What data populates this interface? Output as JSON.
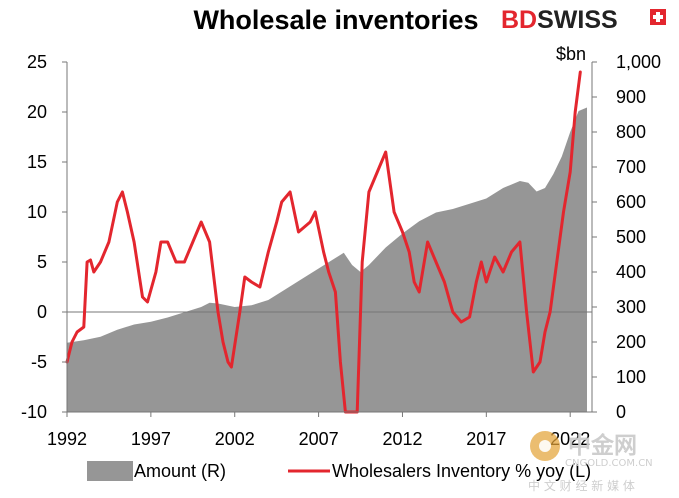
{
  "brand": {
    "part1": "BD",
    "part2": "SWISS",
    "color": "#e3262e"
  },
  "watermark": {
    "name": "中金网",
    "url": "CNGOLD.COM.CN",
    "tagline": "中 文 财 经 新 媒 体"
  },
  "chart_data": {
    "type": "area+line",
    "title": "Wholesale inventories",
    "left_axis": {
      "ylim": [
        -10,
        25
      ],
      "ticks": [
        "-10",
        "-5",
        "0",
        "5",
        "10",
        "15",
        "20",
        "25"
      ]
    },
    "right_axis": {
      "unit_label": "$bn",
      "ylim": [
        0,
        1000
      ],
      "ticks": [
        "0",
        "100",
        "200",
        "300",
        "400",
        "500",
        "600",
        "700",
        "800",
        "900",
        "1,000"
      ]
    },
    "x_axis": {
      "range": [
        1992,
        2023.3
      ],
      "ticks": [
        "1992",
        "1997",
        "2002",
        "2007",
        "2012",
        "2017",
        "2022"
      ]
    },
    "grid": false,
    "legend_position": "bottom",
    "series": [
      {
        "name": "Amount (R)",
        "type": "area",
        "axis": "right",
        "color": "#969696",
        "x": [
          1992,
          1993,
          1994,
          1995,
          1996,
          1997,
          1998,
          1999,
          2000,
          2000.5,
          2001,
          2002,
          2003,
          2004,
          2005,
          2006,
          2007,
          2008,
          2008.5,
          2009,
          2009.5,
          2010,
          2011,
          2012,
          2013,
          2014,
          2015,
          2016,
          2017,
          2018,
          2019,
          2019.5,
          2020,
          2020.5,
          2021,
          2021.5,
          2022,
          2022.5,
          2023
        ],
        "values": [
          198,
          205,
          215,
          235,
          250,
          258,
          270,
          285,
          300,
          312,
          310,
          300,
          305,
          320,
          350,
          380,
          410,
          440,
          455,
          420,
          400,
          420,
          470,
          510,
          545,
          570,
          580,
          595,
          610,
          640,
          660,
          655,
          630,
          640,
          680,
          730,
          800,
          860,
          870
        ]
      },
      {
        "name": "Wholesalers Inventory % yoy (L)",
        "type": "line",
        "axis": "left",
        "color": "#e3262e",
        "x": [
          1992,
          1992.3,
          1992.6,
          1993,
          1993.2,
          1993.4,
          1993.6,
          1994,
          1994.5,
          1995,
          1995.3,
          1995.6,
          1996,
          1996.5,
          1996.8,
          1997.3,
          1997.6,
          1998,
          1998.5,
          1999,
          1999.5,
          2000,
          2000.5,
          2001,
          2001.3,
          2001.6,
          2001.8,
          2002.3,
          2002.6,
          2003,
          2003.5,
          2004,
          2004.5,
          2004.8,
          2005.3,
          2005.8,
          2006.5,
          2006.8,
          2007.3,
          2007.6,
          2008,
          2008.3,
          2008.6,
          2009,
          2009.3,
          2009.6,
          2010,
          2010.5,
          2011,
          2011.5,
          2012,
          2012.4,
          2012.7,
          2013,
          2013.5,
          2014,
          2014.5,
          2015,
          2015.5,
          2016,
          2016.4,
          2016.7,
          2017,
          2017.5,
          2018,
          2018.5,
          2019,
          2019.4,
          2019.8,
          2020.2,
          2020.5,
          2020.8,
          2021.2,
          2021.6,
          2022,
          2022.3,
          2022.6
        ],
        "values": [
          -5,
          -3,
          -2,
          -1.5,
          5,
          5.2,
          4,
          5,
          7,
          11,
          12,
          10,
          7,
          1.5,
          1,
          4,
          7,
          7,
          5,
          5,
          7,
          9,
          7,
          0,
          -3,
          -5,
          -5.5,
          0,
          3.5,
          3,
          2.5,
          6,
          9,
          11,
          12,
          8,
          9,
          10,
          6,
          4,
          2,
          -5,
          -10,
          -12,
          -13,
          5,
          12,
          14,
          16,
          10,
          8,
          6,
          3,
          2,
          7,
          5,
          3,
          0,
          -1,
          -0.5,
          3,
          5,
          3,
          5.5,
          4,
          6,
          7,
          0,
          -6,
          -5,
          -2,
          0,
          5,
          10,
          14,
          20,
          24
        ]
      }
    ]
  }
}
